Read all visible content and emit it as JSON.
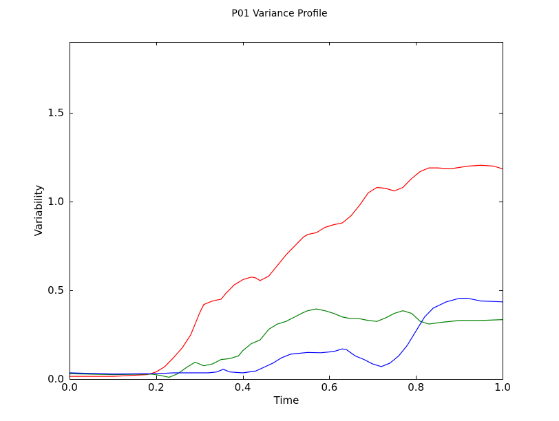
{
  "chart_data": {
    "type": "line",
    "title": "P01 Variance Profile",
    "xlabel": "Time",
    "ylabel": "Variability",
    "xlim": [
      0.0,
      1.0
    ],
    "ylim": [
      0.0,
      1.9
    ],
    "x_ticks": [
      "0.0",
      "0.2",
      "0.4",
      "0.6",
      "0.8",
      "1.0"
    ],
    "y_ticks": [
      "0.0",
      "0.5",
      "1.0",
      "1.5"
    ],
    "grid": false,
    "series": [
      {
        "color": "#ff0000",
        "x": [
          0.0,
          0.1,
          0.18,
          0.2,
          0.22,
          0.24,
          0.26,
          0.28,
          0.29,
          0.3,
          0.31,
          0.33,
          0.35,
          0.36,
          0.38,
          0.4,
          0.42,
          0.43,
          0.44,
          0.46,
          0.48,
          0.5,
          0.52,
          0.54,
          0.55,
          0.57,
          0.59,
          0.61,
          0.63,
          0.65,
          0.67,
          0.69,
          0.71,
          0.73,
          0.75,
          0.77,
          0.79,
          0.81,
          0.83,
          0.85,
          0.88,
          0.92,
          0.95,
          0.98,
          1.0
        ],
        "values": [
          0.015,
          0.015,
          0.025,
          0.04,
          0.07,
          0.12,
          0.175,
          0.25,
          0.31,
          0.37,
          0.42,
          0.44,
          0.45,
          0.48,
          0.53,
          0.56,
          0.575,
          0.57,
          0.555,
          0.58,
          0.64,
          0.7,
          0.75,
          0.8,
          0.815,
          0.825,
          0.855,
          0.87,
          0.88,
          0.92,
          0.98,
          1.05,
          1.08,
          1.075,
          1.06,
          1.08,
          1.13,
          1.17,
          1.19,
          1.19,
          1.185,
          1.2,
          1.205,
          1.2,
          1.185
        ]
      },
      {
        "color": "#008000",
        "x": [
          0.0,
          0.1,
          0.19,
          0.21,
          0.23,
          0.25,
          0.27,
          0.29,
          0.31,
          0.33,
          0.35,
          0.37,
          0.39,
          0.4,
          0.42,
          0.44,
          0.46,
          0.48,
          0.5,
          0.52,
          0.54,
          0.55,
          0.57,
          0.59,
          0.61,
          0.63,
          0.65,
          0.67,
          0.69,
          0.71,
          0.73,
          0.75,
          0.77,
          0.79,
          0.81,
          0.83,
          0.86,
          0.9,
          0.95,
          1.0
        ],
        "values": [
          0.03,
          0.025,
          0.028,
          0.02,
          0.01,
          0.03,
          0.065,
          0.095,
          0.075,
          0.085,
          0.11,
          0.115,
          0.13,
          0.16,
          0.2,
          0.22,
          0.28,
          0.31,
          0.325,
          0.35,
          0.375,
          0.385,
          0.395,
          0.385,
          0.37,
          0.35,
          0.34,
          0.34,
          0.33,
          0.325,
          0.345,
          0.37,
          0.385,
          0.37,
          0.325,
          0.31,
          0.32,
          0.33,
          0.33,
          0.335
        ]
      },
      {
        "color": "#0000ff",
        "x": [
          0.0,
          0.1,
          0.2,
          0.24,
          0.28,
          0.32,
          0.34,
          0.355,
          0.37,
          0.4,
          0.43,
          0.47,
          0.49,
          0.51,
          0.53,
          0.55,
          0.58,
          0.61,
          0.63,
          0.64,
          0.66,
          0.68,
          0.7,
          0.72,
          0.74,
          0.76,
          0.78,
          0.8,
          0.82,
          0.84,
          0.87,
          0.9,
          0.92,
          0.95,
          1.0
        ],
        "values": [
          0.035,
          0.028,
          0.03,
          0.035,
          0.035,
          0.035,
          0.04,
          0.055,
          0.04,
          0.035,
          0.045,
          0.09,
          0.12,
          0.14,
          0.145,
          0.15,
          0.148,
          0.155,
          0.17,
          0.165,
          0.13,
          0.11,
          0.085,
          0.07,
          0.09,
          0.13,
          0.19,
          0.27,
          0.35,
          0.4,
          0.435,
          0.455,
          0.455,
          0.44,
          0.435
        ]
      }
    ]
  }
}
